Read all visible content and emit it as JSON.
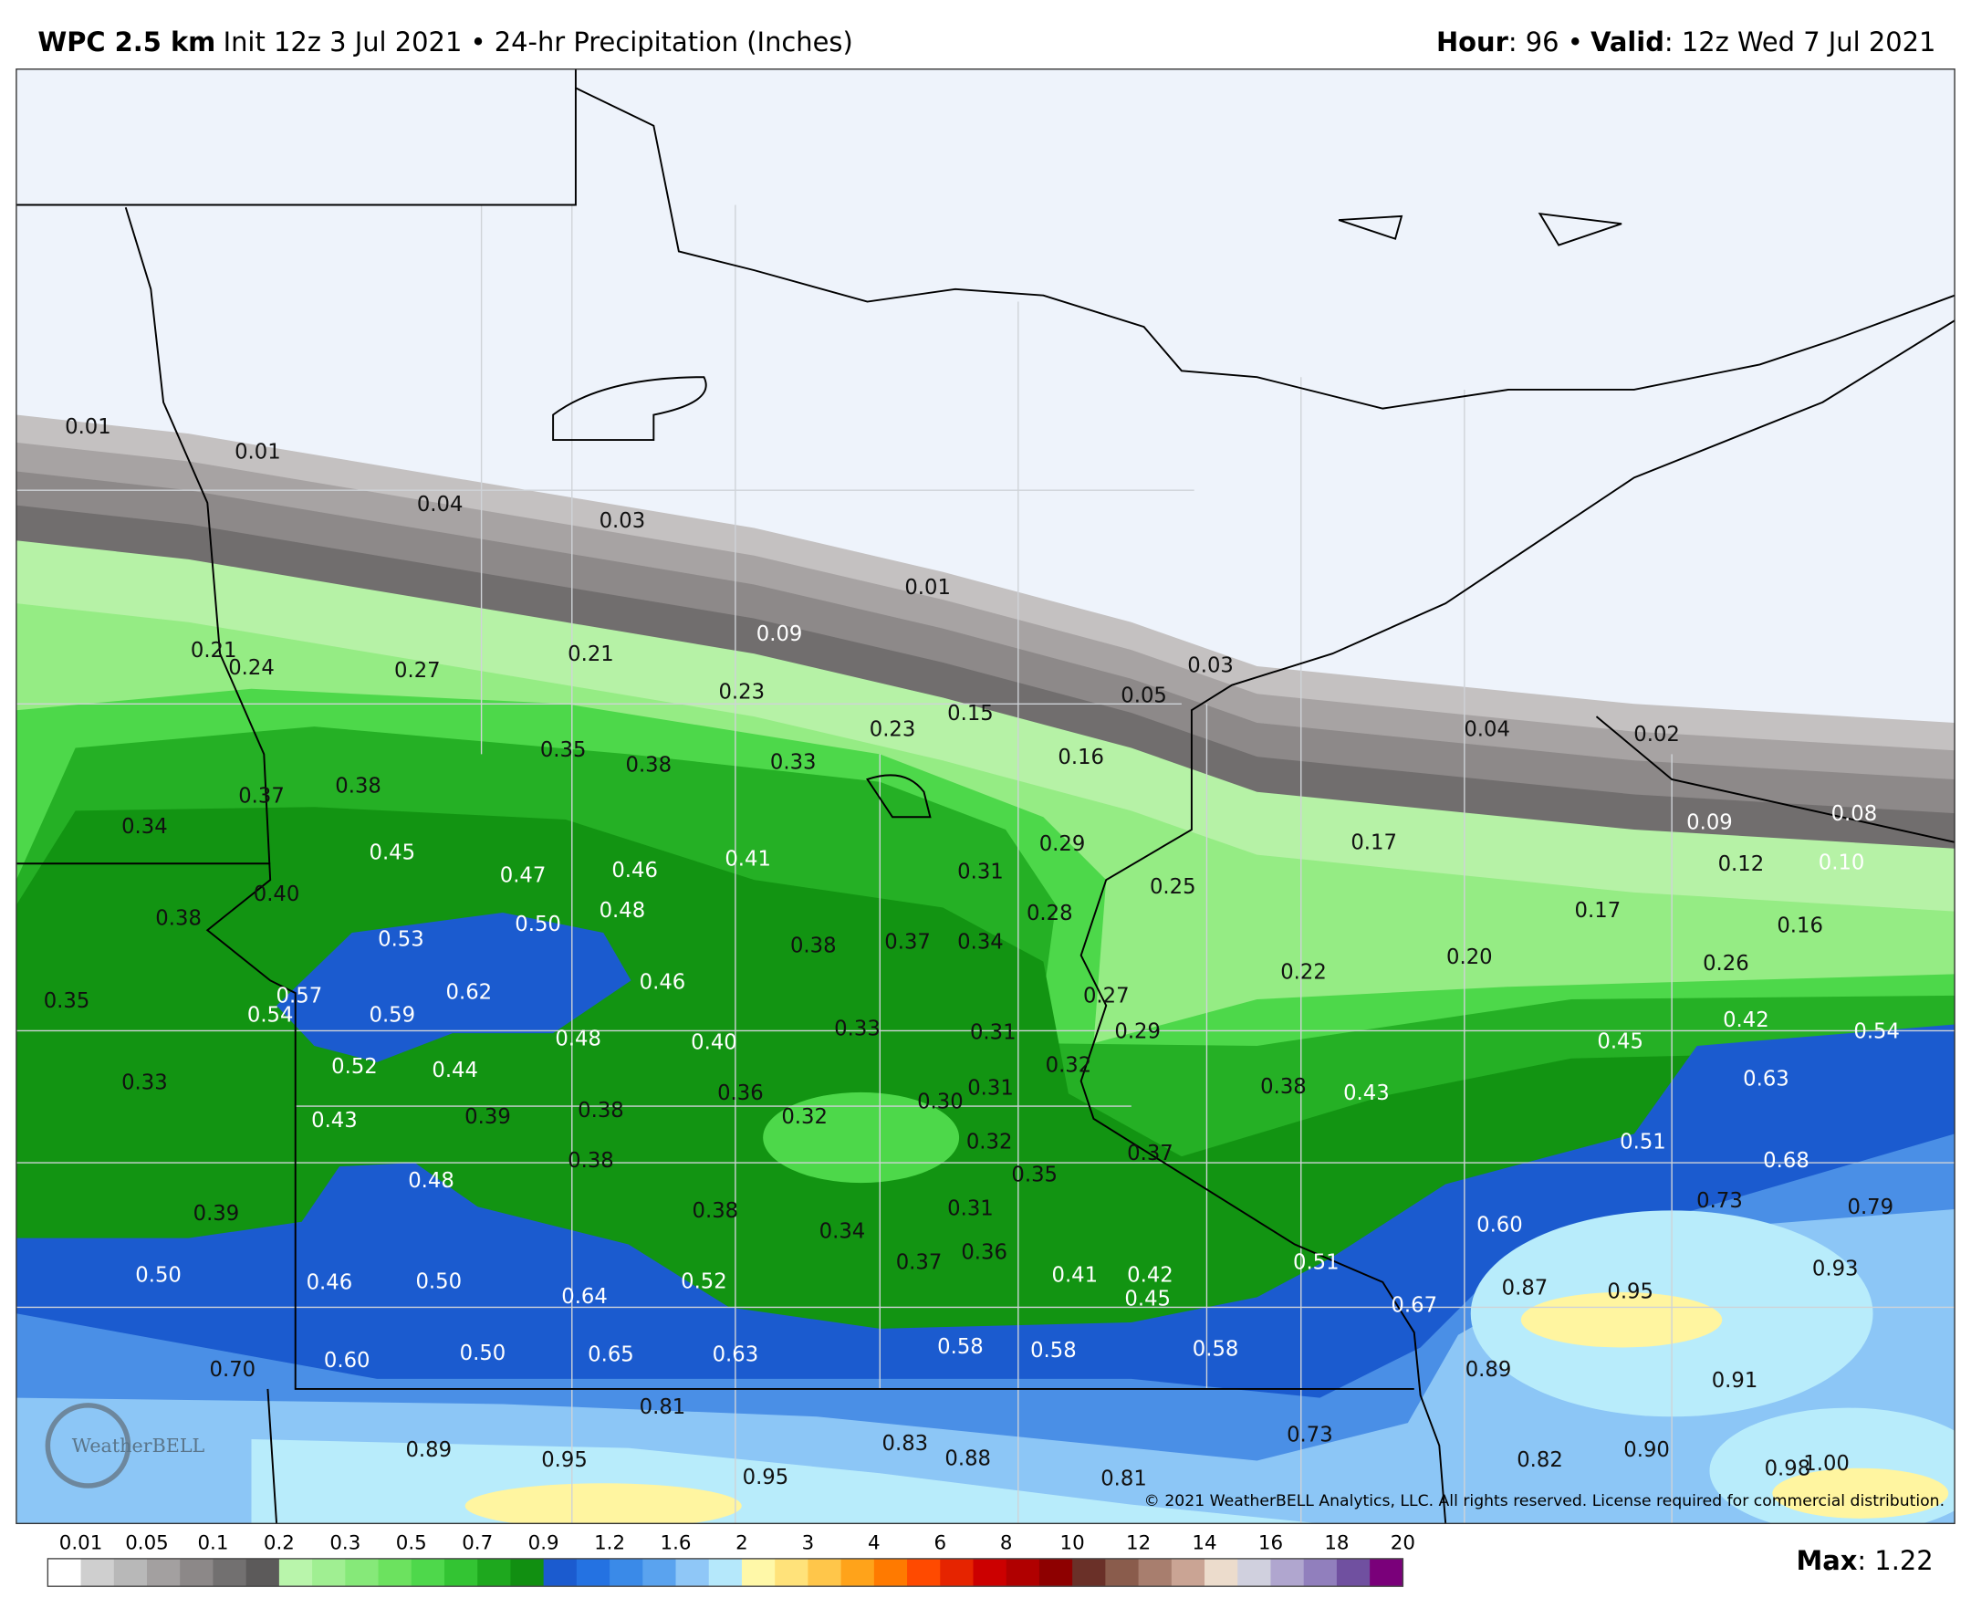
{
  "header": {
    "model": "WPC 2.5 km",
    "info": "Init 12z 3 Jul 2021 • 24-hr Precipitation (Inches)",
    "hour_label": "Hour",
    "hour_value": ": 96 •",
    "valid_label": "Valid",
    "valid_value": ": 12z Wed 7 Jul 2021"
  },
  "map": {
    "point_labels": [
      "0.01",
      "0.01",
      "0.04",
      "0.03",
      "0.01",
      "0.09",
      "0.03",
      "0.05",
      "0.04",
      "0.02",
      "0.09",
      "0.08",
      "0.12",
      "0.10",
      "0.21",
      "0.24",
      "0.27",
      "0.21",
      "0.23",
      "0.23",
      "0.15",
      "0.16",
      "0.35",
      "0.38",
      "0.33",
      "0.37",
      "0.38",
      "0.34",
      "0.45",
      "0.47",
      "0.46",
      "0.41",
      "0.31",
      "0.29",
      "0.25",
      "0.17",
      "0.17",
      "0.16",
      "0.40",
      "0.38",
      "0.53",
      "0.50",
      "0.48",
      "0.28",
      "0.38",
      "0.37",
      "0.34",
      "0.22",
      "0.20",
      "0.26",
      "0.35",
      "0.57",
      "0.54",
      "0.59",
      "0.62",
      "0.46",
      "0.27",
      "0.29",
      "0.45",
      "0.42",
      "0.54",
      "0.52",
      "0.44",
      "0.48",
      "0.40",
      "0.33",
      "0.31",
      "0.32",
      "0.33",
      "0.43",
      "0.39",
      "0.38",
      "0.36",
      "0.32",
      "0.30",
      "0.31",
      "0.38",
      "0.43",
      "0.63",
      "0.51",
      "0.68",
      "0.38",
      "0.48",
      "0.32",
      "0.35",
      "0.37",
      "0.39",
      "0.38",
      "0.34",
      "0.31",
      "0.73",
      "0.79",
      "0.60",
      "0.50",
      "0.46",
      "0.50",
      "0.64",
      "0.52",
      "0.37",
      "0.36",
      "0.41",
      "0.42",
      "0.45",
      "0.51",
      "0.67",
      "0.87",
      "0.95",
      "0.93",
      "0.70",
      "0.60",
      "0.50",
      "0.65",
      "0.63",
      "0.58",
      "0.58",
      "0.58",
      "0.89",
      "0.91",
      "0.81",
      "0.89",
      "0.95",
      "0.95",
      "0.83",
      "0.88",
      "0.81",
      "0.73",
      "0.82",
      "0.90",
      "0.98",
      "1.00"
    ],
    "copyright": "© 2021 WeatherBELL Analytics, LLC. All rights reserved. License required for commercial distribution.",
    "watermark": "WeatherBELL"
  },
  "legend": {
    "labels": [
      "0.01",
      "0.05",
      "0.1",
      "0.2",
      "0.3",
      "0.5",
      "0.7",
      "0.9",
      "1.2",
      "1.6",
      "2",
      "3",
      "4",
      "6",
      "8",
      "10",
      "12",
      "14",
      "16",
      "18",
      "20"
    ],
    "colors": [
      "#ffffff",
      "#cfcfcf",
      "#b8b8b8",
      "#a3a0a0",
      "#8c8888",
      "#727070",
      "#5c5a5a",
      "#b9f5ab",
      "#a0ef92",
      "#86e979",
      "#6ce25f",
      "#4ed84b",
      "#33c433",
      "#1ea81e",
      "#118f11",
      "#1b5bcf",
      "#2472e2",
      "#3a8ae8",
      "#5aa3ef",
      "#8fc7f7",
      "#b5e8fb",
      "#fff8a8",
      "#ffe27a",
      "#ffc64a",
      "#ffa31a",
      "#ff7a00",
      "#ff4a00",
      "#e62400",
      "#cc0000",
      "#b00000",
      "#8e0000",
      "#6a3028",
      "#8a5c4c",
      "#a87e6e",
      "#caa494",
      "#ecdccc",
      "#d0d0de",
      "#b0a6cf",
      "#917fbd",
      "#7050a0",
      "#7a007a"
    ]
  },
  "footer": {
    "max_label": "Max",
    "max_value": ": 1.22"
  }
}
